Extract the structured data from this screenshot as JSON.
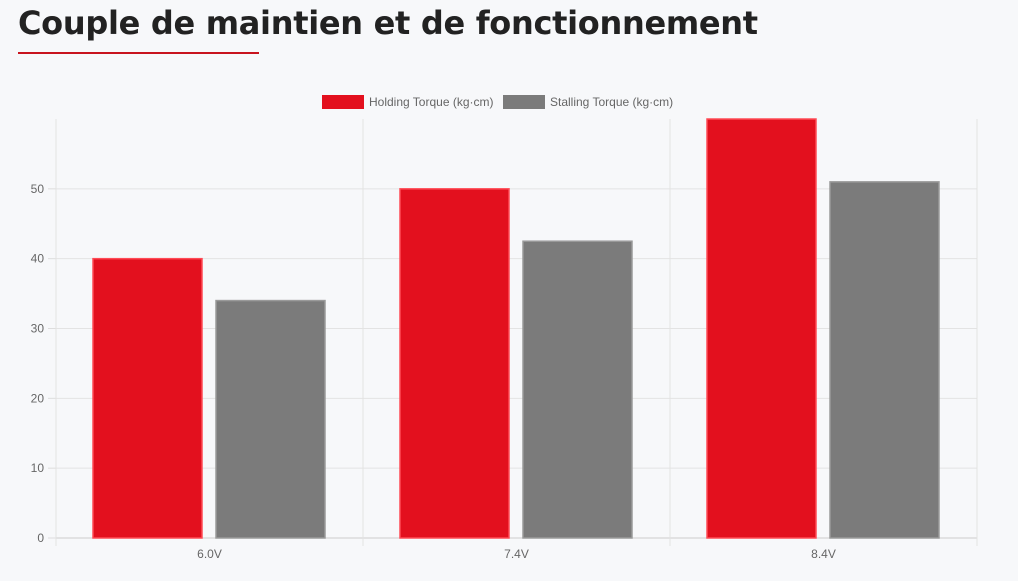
{
  "page": {
    "title": "Couple de maintien et de fonctionnement",
    "accent_color": "#c8141e"
  },
  "chart_data": {
    "type": "bar",
    "categories": [
      "6.0V",
      "7.4V",
      "8.4V"
    ],
    "series": [
      {
        "name": "Holding Torque (kg·cm)",
        "values": [
          40,
          50,
          60
        ],
        "color": "#e3101e"
      },
      {
        "name": "Stalling Torque (kg·cm)",
        "values": [
          34,
          42.5,
          51
        ],
        "color": "#7b7b7b"
      }
    ],
    "y_ticks": [
      0,
      10,
      20,
      30,
      40,
      50
    ],
    "ylim": [
      0,
      60
    ],
    "grid": true,
    "legend_position": "top"
  }
}
